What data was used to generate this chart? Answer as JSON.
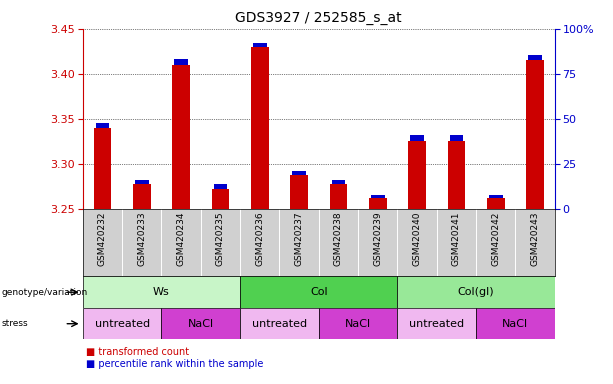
{
  "title": "GDS3927 / 252585_s_at",
  "samples": [
    "GSM420232",
    "GSM420233",
    "GSM420234",
    "GSM420235",
    "GSM420236",
    "GSM420237",
    "GSM420238",
    "GSM420239",
    "GSM420240",
    "GSM420241",
    "GSM420242",
    "GSM420243"
  ],
  "red_values": [
    3.34,
    3.278,
    3.41,
    3.272,
    3.43,
    3.288,
    3.278,
    3.262,
    3.326,
    3.326,
    3.262,
    3.415
  ],
  "blue_heights": [
    0.006,
    0.004,
    0.006,
    0.006,
    0.004,
    0.004,
    0.004,
    0.004,
    0.006,
    0.006,
    0.004,
    0.006
  ],
  "ylim_left": [
    3.25,
    3.45
  ],
  "ylim_right": [
    0,
    100
  ],
  "yticks_left": [
    3.25,
    3.3,
    3.35,
    3.4,
    3.45
  ],
  "yticks_right": [
    0,
    25,
    50,
    75,
    100
  ],
  "ytick_labels_right": [
    "0",
    "25",
    "50",
    "75",
    "100%"
  ],
  "groups": [
    {
      "label": "Ws",
      "start": 0,
      "end": 4,
      "color": "#c8f5c8"
    },
    {
      "label": "Col",
      "start": 4,
      "end": 8,
      "color": "#50d050"
    },
    {
      "label": "Col(gl)",
      "start": 8,
      "end": 12,
      "color": "#98e898"
    }
  ],
  "stress": [
    {
      "label": "untreated",
      "start": 0,
      "end": 2,
      "color": "#f0b8f0"
    },
    {
      "label": "NaCl",
      "start": 2,
      "end": 4,
      "color": "#d040d0"
    },
    {
      "label": "untreated",
      "start": 4,
      "end": 6,
      "color": "#f0b8f0"
    },
    {
      "label": "NaCl",
      "start": 6,
      "end": 8,
      "color": "#d040d0"
    },
    {
      "label": "untreated",
      "start": 8,
      "end": 10,
      "color": "#f0b8f0"
    },
    {
      "label": "NaCl",
      "start": 10,
      "end": 12,
      "color": "#d040d0"
    }
  ],
  "bar_width": 0.45,
  "blue_bar_width": 0.35,
  "red_color": "#cc0000",
  "blue_color": "#0000cc",
  "background_color": "#ffffff",
  "label_red": "transformed count",
  "label_blue": "percentile rank within the sample",
  "ylabel_left_color": "#cc0000",
  "ylabel_right_color": "#0000cc",
  "sample_bg_color": "#d0d0d0",
  "sample_divider_color": "#ffffff"
}
